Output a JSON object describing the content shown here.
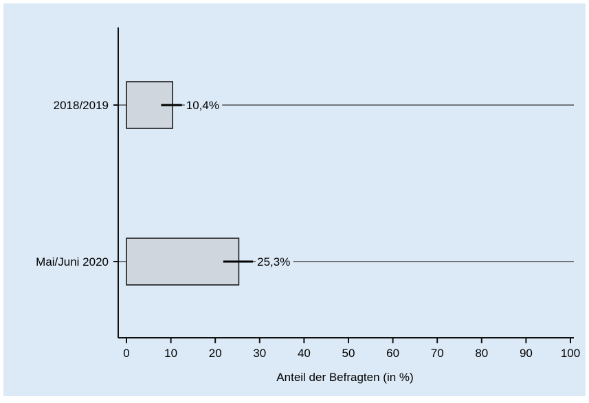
{
  "chart_data": {
    "type": "bar",
    "orientation": "horizontal",
    "categories": [
      "2018/2019",
      "Mai/Juni 2020"
    ],
    "values": [
      10.4,
      25.3
    ],
    "error_bars": [
      {
        "low": 7.8,
        "high": 12.5
      },
      {
        "low": 21.8,
        "high": 28.5
      }
    ],
    "data_labels": [
      "10,4%",
      "25,3%"
    ],
    "xlabel": "Anteil der Befragten (in %)",
    "ylabel": "",
    "title": "",
    "xlim": [
      0,
      100
    ],
    "xticks": [
      0,
      10,
      20,
      30,
      40,
      50,
      60,
      70,
      80,
      90,
      100
    ],
    "grid": "reference lines per category",
    "legend": "none",
    "colors": {
      "plot_background": "#dce9f6",
      "bar_fill": "#d0d6de",
      "bar_stroke": "#1a1a1a",
      "axis": "#111111",
      "reference_line": "#333333",
      "error_bar": "#000000"
    }
  }
}
